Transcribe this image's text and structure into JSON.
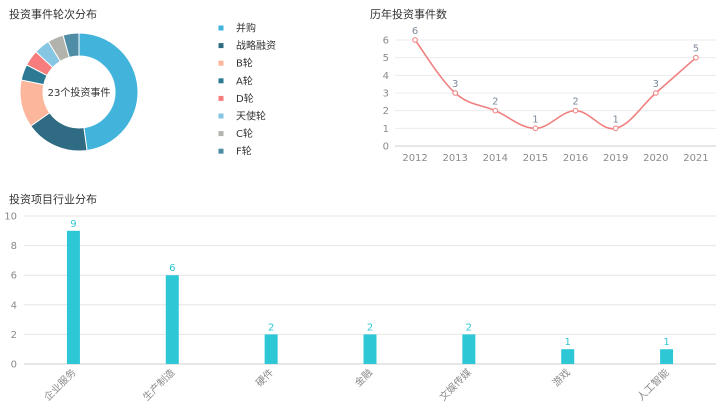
{
  "panels": {
    "round_title": "投资事件轮次分布",
    "history_title": "历年投资事件数",
    "industry_title": "投资项目行业分布"
  },
  "chart_data": [
    {
      "type": "pie",
      "variant": "donut",
      "title": "投资事件轮次分布",
      "center_text": "23个投资事件",
      "legend_position": "right",
      "slices": [
        {
          "name": "并购",
          "value": 11,
          "color": "#42b4dc"
        },
        {
          "name": "战略融资",
          "value": 4,
          "color": "#2f6b82"
        },
        {
          "name": "B轮",
          "value": 3,
          "color": "#fcb69b"
        },
        {
          "name": "A轮",
          "value": 1,
          "color": "#2c7a93"
        },
        {
          "name": "D轮",
          "value": 1,
          "color": "#f77c7c"
        },
        {
          "name": "天使轮",
          "value": 1,
          "color": "#86c6e2"
        },
        {
          "name": "C轮",
          "value": 1,
          "color": "#b3b3ad"
        },
        {
          "name": "F轮",
          "value": 1,
          "color": "#4f8ca6"
        }
      ]
    },
    {
      "type": "line",
      "title": "历年投资事件数",
      "x": [
        "2012",
        "2013",
        "2014",
        "2015",
        "2016",
        "2019",
        "2020",
        "2021"
      ],
      "values": [
        6,
        3,
        2,
        1,
        2,
        1,
        3,
        5
      ],
      "ylim": [
        0,
        6
      ],
      "yticks": [
        0,
        1,
        2,
        3,
        4,
        5,
        6
      ],
      "grid": true,
      "line_color": "#f08080"
    },
    {
      "type": "bar",
      "title": "投资项目行业分布",
      "categories": [
        "企业服务",
        "生产制造",
        "硬件",
        "金融",
        "文娱传媒",
        "游戏",
        "人工智能"
      ],
      "values": [
        9,
        6,
        2,
        2,
        2,
        1,
        1
      ],
      "ylim": [
        0,
        10
      ],
      "yticks": [
        0,
        2,
        4,
        6,
        8,
        10
      ],
      "grid": true,
      "bar_color": "#2ec7d6"
    }
  ]
}
